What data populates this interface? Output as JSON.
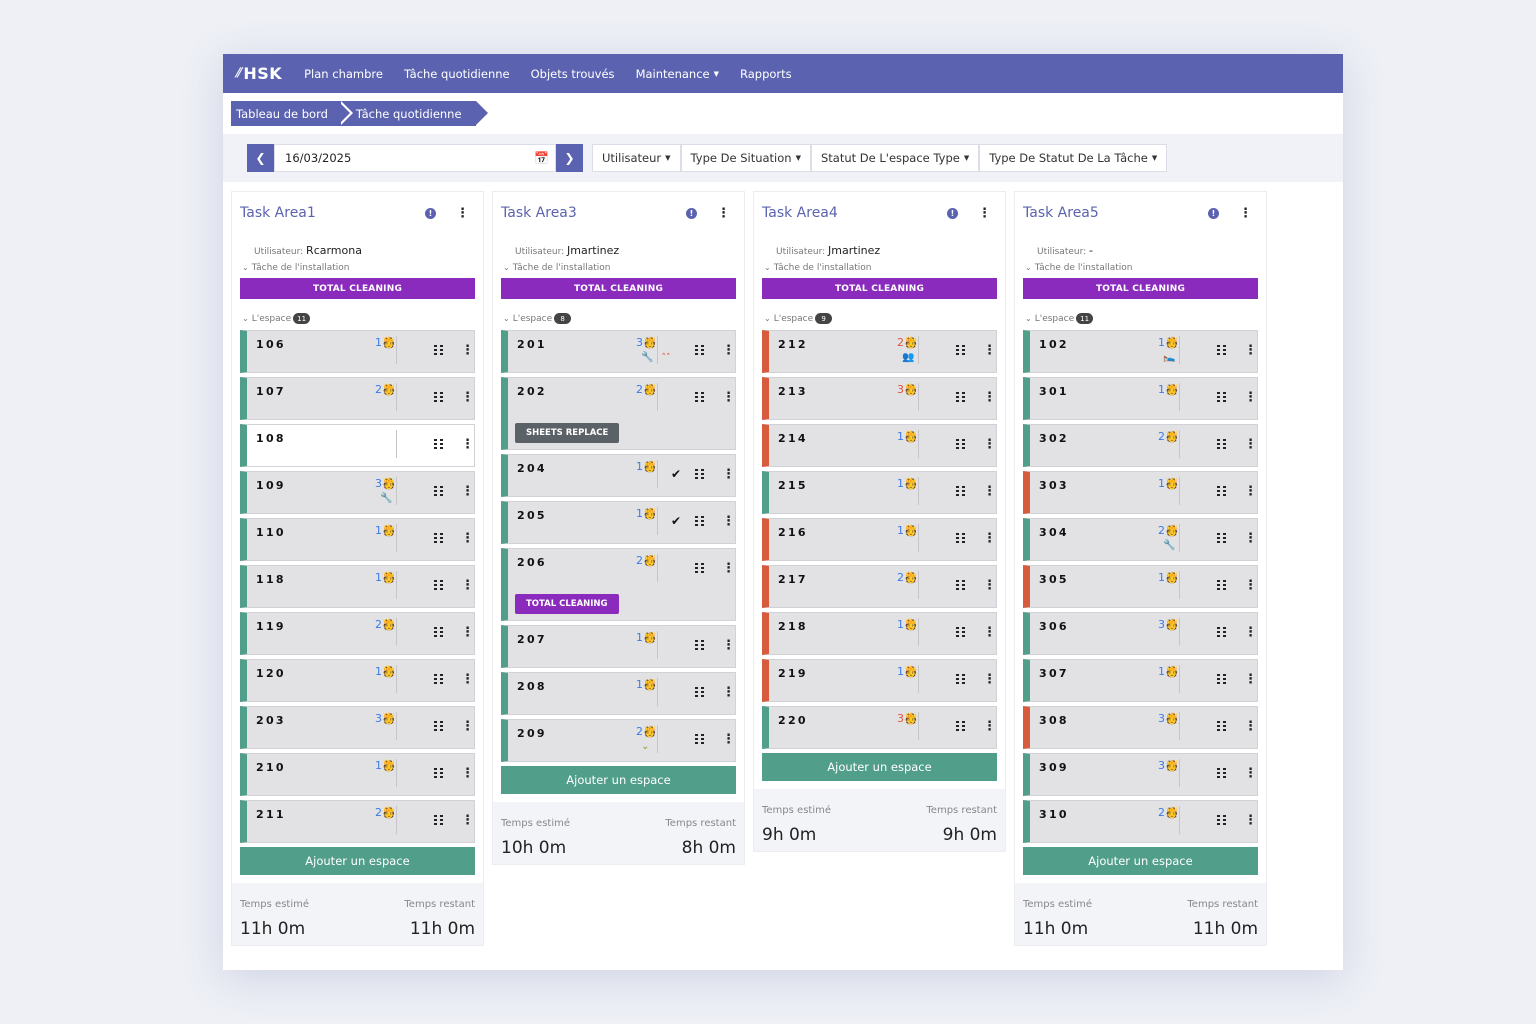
{
  "nav": {
    "logo": "HSK",
    "items": [
      "Plan chambre",
      "Tâche quotidienne",
      "Objets trouvés",
      "Maintenance",
      "Rapports"
    ]
  },
  "breadcrumb": [
    "Tableau de bord",
    "Tâche quotidienne"
  ],
  "filters": {
    "date": "16/03/2025",
    "selects": [
      "Utilisateur",
      "Type De Situation",
      "Statut De L'espace Type",
      "Type De Statut De La Tâche"
    ]
  },
  "labels": {
    "user_label": "Utilisateur:",
    "installation": "Tâche de l'installation",
    "total_cleaning": "TOTAL CLEANING",
    "espace": "L'espace",
    "add_space": "Ajouter un espace",
    "estimated": "Temps estimé",
    "remaining": "Temps restant"
  },
  "columns": [
    {
      "title": "Task Area1",
      "user": "Rcarmona",
      "count": "11",
      "estimated": "11h 0m",
      "remaining": "11h 0m",
      "rooms": [
        {
          "num": "106",
          "guests": "1",
          "color": "green"
        },
        {
          "num": "107",
          "guests": "2",
          "color": "green"
        },
        {
          "num": "108",
          "guests": "",
          "color": "green",
          "white": true
        },
        {
          "num": "109",
          "guests": "3",
          "color": "green",
          "icon": "wrench"
        },
        {
          "num": "110",
          "guests": "1",
          "color": "green"
        },
        {
          "num": "118",
          "guests": "1",
          "color": "green"
        },
        {
          "num": "119",
          "guests": "2",
          "color": "green"
        },
        {
          "num": "120",
          "guests": "1",
          "color": "green"
        },
        {
          "num": "203",
          "guests": "3",
          "color": "green"
        },
        {
          "num": "210",
          "guests": "1",
          "color": "green"
        },
        {
          "num": "211",
          "guests": "2",
          "color": "green"
        }
      ]
    },
    {
      "title": "Task Area3",
      "user": "Jmartinez",
      "count": "8",
      "estimated": "10h 0m",
      "remaining": "8h 0m",
      "rooms": [
        {
          "num": "201",
          "guests": "3",
          "color": "green",
          "icon": "wrench-up"
        },
        {
          "num": "202",
          "guests": "2",
          "color": "green",
          "tag": "SHEETS REPLACE",
          "tagColor": "grey"
        },
        {
          "num": "204",
          "guests": "1",
          "color": "green",
          "check": true
        },
        {
          "num": "205",
          "guests": "1",
          "color": "green",
          "check": true
        },
        {
          "num": "206",
          "guests": "2",
          "color": "green",
          "tag": "TOTAL CLEANING",
          "tagColor": "purple"
        },
        {
          "num": "207",
          "guests": "1",
          "color": "green"
        },
        {
          "num": "208",
          "guests": "1",
          "color": "green"
        },
        {
          "num": "209",
          "guests": "2",
          "color": "green",
          "icon": "down"
        }
      ]
    },
    {
      "title": "Task Area4",
      "user": "Jmartinez",
      "count": "9",
      "estimated": "9h 0m",
      "remaining": "9h 0m",
      "rooms": [
        {
          "num": "212",
          "guests": "2",
          "color": "red",
          "guestColor": "red",
          "icon": "group"
        },
        {
          "num": "213",
          "guests": "3",
          "color": "red",
          "guestColor": "red"
        },
        {
          "num": "214",
          "guests": "1",
          "color": "red"
        },
        {
          "num": "215",
          "guests": "1",
          "color": "green"
        },
        {
          "num": "216",
          "guests": "1",
          "color": "red"
        },
        {
          "num": "217",
          "guests": "2",
          "color": "red"
        },
        {
          "num": "218",
          "guests": "1",
          "color": "red"
        },
        {
          "num": "219",
          "guests": "1",
          "color": "red"
        },
        {
          "num": "220",
          "guests": "3",
          "color": "green",
          "guestColor": "red"
        }
      ]
    },
    {
      "title": "Task Area5",
      "user": "-",
      "count": "11",
      "estimated": "11h 0m",
      "remaining": "11h 0m",
      "rooms": [
        {
          "num": "102",
          "guests": "1",
          "color": "green",
          "icon": "bed"
        },
        {
          "num": "301",
          "guests": "1",
          "color": "green"
        },
        {
          "num": "302",
          "guests": "2",
          "color": "green"
        },
        {
          "num": "303",
          "guests": "1",
          "color": "red"
        },
        {
          "num": "304",
          "guests": "2",
          "color": "green",
          "icon": "wrench"
        },
        {
          "num": "305",
          "guests": "1",
          "color": "red"
        },
        {
          "num": "306",
          "guests": "3",
          "color": "green"
        },
        {
          "num": "307",
          "guests": "1",
          "color": "green"
        },
        {
          "num": "308",
          "guests": "3",
          "color": "red"
        },
        {
          "num": "309",
          "guests": "3",
          "color": "green"
        },
        {
          "num": "310",
          "guests": "2",
          "color": "green"
        }
      ]
    }
  ]
}
